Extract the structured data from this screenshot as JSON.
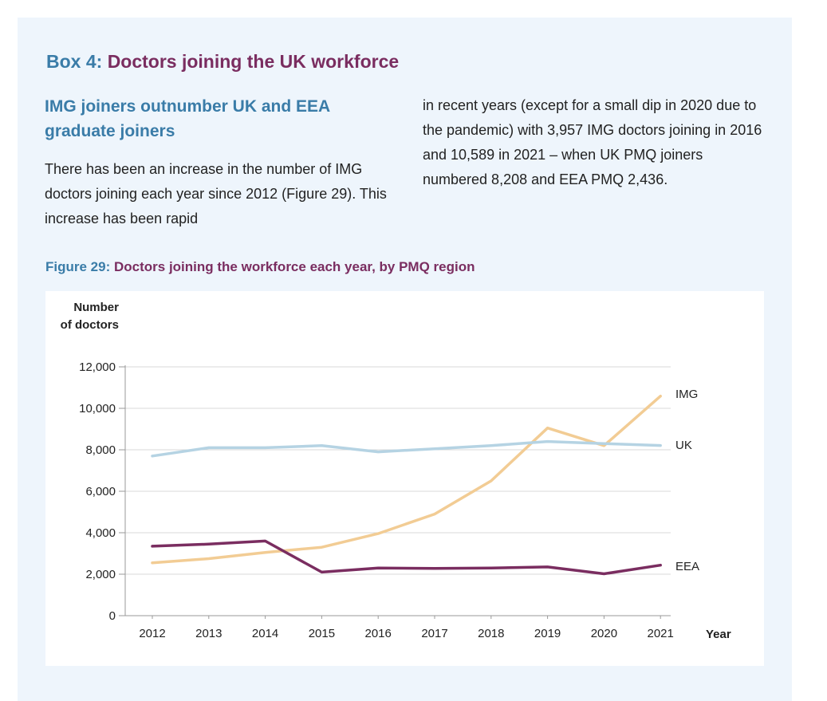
{
  "box": {
    "title_prefix": "Box 4:",
    "title": "Doctors joining the UK workforce"
  },
  "subheading": "IMG joiners outnumber UK and EEA graduate joiners",
  "paragraph_left": "There has been an increase in the number of IMG doctors joining each year since 2012 (Figure 29). This increase has been rapid",
  "paragraph_right": "in recent years (except for a small dip in 2020 due to the pandemic) with 3,957 IMG doctors joining in 2016 and 10,589 in 2021 – when UK PMQ joiners numbered 8,208 and EEA PMQ 2,436.",
  "figure": {
    "caption_prefix": "Figure 29:",
    "caption": "Doctors joining the workforce each year, by PMQ region"
  },
  "chart_data": {
    "type": "line",
    "title": "Doctors joining the workforce each year, by PMQ region",
    "ylabel_line1": "Number",
    "ylabel_line2": "of doctors",
    "xlabel": "Year",
    "categories": [
      "2012",
      "2013",
      "2014",
      "2015",
      "2016",
      "2017",
      "2018",
      "2019",
      "2020",
      "2021"
    ],
    "ylim": [
      0,
      12000
    ],
    "yticks": [
      0,
      2000,
      4000,
      6000,
      8000,
      10000,
      12000
    ],
    "ytick_labels": [
      "0",
      "2,000",
      "4,000",
      "6,000",
      "8,000",
      "10,000",
      "12,000"
    ],
    "grid": true,
    "series": [
      {
        "name": "IMG",
        "color": "#f2cc94",
        "values": [
          2550,
          2750,
          3050,
          3300,
          3957,
          4900,
          6500,
          9050,
          8200,
          10589
        ]
      },
      {
        "name": "UK",
        "color": "#b5d3e3",
        "values": [
          7700,
          8100,
          8100,
          8200,
          7900,
          8050,
          8200,
          8400,
          8300,
          8208
        ]
      },
      {
        "name": "EEA",
        "color": "#7a2d60",
        "values": [
          3350,
          3450,
          3600,
          2100,
          2300,
          2280,
          2300,
          2350,
          2020,
          2436
        ]
      }
    ]
  }
}
